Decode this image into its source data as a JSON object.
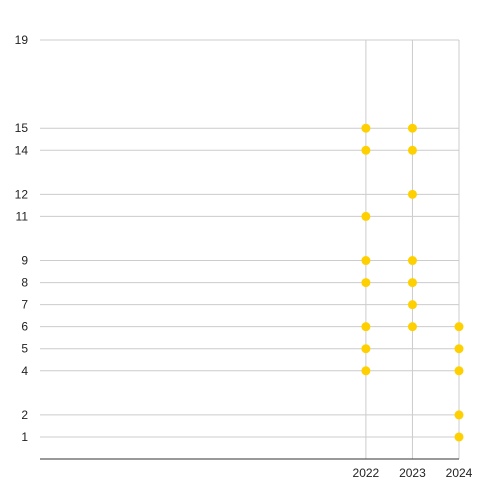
{
  "chart_data": {
    "type": "scatter",
    "title": "",
    "xlabel": "",
    "ylabel": "",
    "x_ticks": [
      2022,
      2023,
      2024
    ],
    "y_ticks": [
      1,
      2,
      4,
      5,
      6,
      7,
      8,
      9,
      11,
      12,
      14,
      15,
      19
    ],
    "xlim": [
      2015,
      2024
    ],
    "ylim": [
      0,
      19
    ],
    "grid": true,
    "legend": "none",
    "point_color": "#FFD000",
    "series": [
      {
        "points": [
          {
            "x": 2022,
            "y": 15
          },
          {
            "x": 2022,
            "y": 14
          },
          {
            "x": 2022,
            "y": 11
          },
          {
            "x": 2022,
            "y": 9
          },
          {
            "x": 2022,
            "y": 8
          },
          {
            "x": 2022,
            "y": 6
          },
          {
            "x": 2022,
            "y": 5
          },
          {
            "x": 2022,
            "y": 4
          },
          {
            "x": 2023,
            "y": 15
          },
          {
            "x": 2023,
            "y": 14
          },
          {
            "x": 2023,
            "y": 12
          },
          {
            "x": 2023,
            "y": 9
          },
          {
            "x": 2023,
            "y": 8
          },
          {
            "x": 2023,
            "y": 7
          },
          {
            "x": 2023,
            "y": 6
          },
          {
            "x": 2024,
            "y": 6
          },
          {
            "x": 2024,
            "y": 5
          },
          {
            "x": 2024,
            "y": 4
          },
          {
            "x": 2024,
            "y": 2
          },
          {
            "x": 2024,
            "y": 1
          }
        ]
      }
    ]
  }
}
